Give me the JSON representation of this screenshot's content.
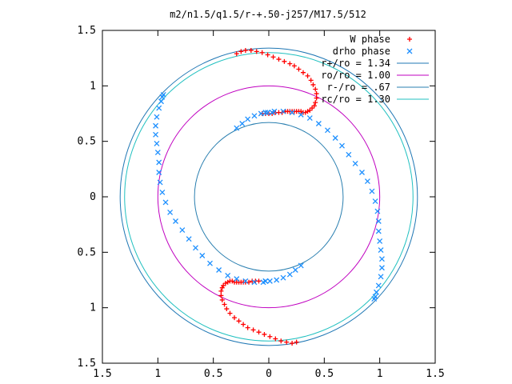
{
  "chart_data": {
    "type": "scatter",
    "title": "m2/n1.5/q1.5/r-+.50-j257/M17.5/512",
    "xlabel": "",
    "ylabel": "",
    "xlim": [
      -1.5,
      1.5
    ],
    "ylim": [
      -1.5,
      1.5
    ],
    "x_ticks": [
      -1.5,
      -1,
      -0.5,
      0,
      0.5,
      1,
      1.5
    ],
    "y_ticks": [
      -1.5,
      -1,
      -0.5,
      0,
      0.5,
      1,
      1.5
    ],
    "x_tick_labels": [
      "1.5",
      "1",
      "0.5",
      "0",
      "0.5",
      "1",
      "1.5"
    ],
    "y_tick_labels": [
      "1.5",
      "1",
      "0.5",
      "0",
      "0.5",
      "1",
      "1.5"
    ],
    "grid": false,
    "legend_position": "top-right",
    "series": [
      {
        "name": "W phase",
        "marker": "plus",
        "color": "#ff0000",
        "x": [
          -0.29,
          -0.25,
          -0.21,
          -0.16,
          -0.11,
          -0.06,
          -0.01,
          0.04,
          0.09,
          0.14,
          0.19,
          0.23,
          0.27,
          0.31,
          0.35,
          0.38,
          0.4,
          0.42,
          0.43,
          0.43,
          0.42,
          0.41,
          0.39,
          0.37,
          0.35,
          0.33,
          0.31,
          0.29,
          0.27,
          0.25,
          0.23,
          0.21,
          0.19,
          0.17,
          0.15,
          0.12,
          0.09,
          0.06,
          0.03,
          0.0,
          -0.03,
          -0.06,
          -0.09,
          -0.12,
          -0.15,
          -0.18,
          -0.21,
          -0.23,
          -0.25,
          -0.27,
          -0.29,
          -0.31,
          -0.33,
          -0.35,
          -0.37,
          -0.39,
          -0.41,
          -0.42,
          -0.43,
          -0.43,
          -0.42,
          -0.4,
          -0.38,
          -0.35,
          -0.31,
          -0.27,
          -0.23,
          -0.19,
          -0.14,
          -0.09,
          -0.04,
          0.01,
          0.06,
          0.11,
          0.16,
          0.21,
          0.25
        ],
        "y": [
          1.29,
          1.31,
          1.32,
          1.32,
          1.31,
          1.3,
          1.28,
          1.26,
          1.24,
          1.22,
          1.2,
          1.18,
          1.15,
          1.12,
          1.09,
          1.05,
          1.01,
          0.97,
          0.93,
          0.89,
          0.85,
          0.82,
          0.8,
          0.78,
          0.77,
          0.76,
          0.76,
          0.77,
          0.77,
          0.77,
          0.77,
          0.77,
          0.77,
          0.77,
          0.77,
          0.76,
          0.76,
          0.76,
          0.75,
          0.75,
          0.75,
          0.75,
          -0.76,
          -0.76,
          -0.76,
          -0.77,
          -0.77,
          -0.77,
          -0.77,
          -0.77,
          -0.77,
          -0.77,
          -0.76,
          -0.76,
          -0.77,
          -0.78,
          -0.8,
          -0.82,
          -0.85,
          -0.89,
          -0.93,
          -0.97,
          -1.01,
          -1.05,
          -1.09,
          -1.12,
          -1.15,
          -1.18,
          -1.2,
          -1.22,
          -1.24,
          -1.26,
          -1.28,
          -1.3,
          -1.31,
          -1.32,
          -1.31
        ]
      },
      {
        "name": "drho phase",
        "marker": "cross",
        "color": "#1e90ff",
        "x": [
          -0.03,
          0.05,
          0.13,
          0.21,
          0.29,
          0.37,
          0.45,
          0.53,
          0.6,
          0.66,
          0.72,
          0.78,
          0.84,
          0.89,
          0.93,
          0.96,
          0.98,
          0.99,
          0.99,
          1.0,
          1.01,
          1.02,
          1.02,
          1.01,
          0.99,
          0.97,
          0.96,
          0.95,
          -0.29,
          -0.24,
          -0.19,
          -0.13,
          -0.07,
          -0.01,
          0.03,
          -0.03,
          -0.05,
          -0.13,
          -0.21,
          -0.29,
          -0.37,
          -0.45,
          -0.53,
          -0.6,
          -0.66,
          -0.72,
          -0.78,
          -0.84,
          -0.89,
          -0.93,
          -0.96,
          -0.98,
          -0.99,
          -0.99,
          -1.0,
          -1.01,
          -1.02,
          -1.02,
          -1.01,
          -0.99,
          -0.97,
          -0.96,
          -0.95,
          0.29,
          0.24,
          0.19,
          0.13,
          0.07,
          0.01,
          -0.03
        ],
        "y": [
          0.76,
          0.77,
          0.77,
          0.76,
          0.74,
          0.71,
          0.66,
          0.6,
          0.53,
          0.46,
          0.38,
          0.3,
          0.22,
          0.14,
          0.05,
          -0.04,
          -0.13,
          -0.22,
          -0.31,
          -0.4,
          -0.48,
          -0.56,
          -0.64,
          -0.72,
          -0.8,
          -0.86,
          -0.9,
          -0.92,
          0.62,
          0.66,
          0.7,
          0.73,
          0.75,
          0.76,
          0.76,
          -0.76,
          -0.77,
          -0.77,
          -0.76,
          -0.74,
          -0.71,
          -0.66,
          -0.6,
          -0.53,
          -0.46,
          -0.38,
          -0.3,
          -0.22,
          -0.14,
          -0.05,
          0.04,
          0.13,
          0.22,
          0.31,
          0.4,
          0.48,
          0.56,
          0.64,
          0.72,
          0.8,
          0.86,
          0.9,
          0.92,
          -0.62,
          -0.66,
          -0.7,
          -0.73,
          -0.75,
          -0.76,
          -0.76
        ]
      },
      {
        "name": "r+/ro = 1.34",
        "type": "circle",
        "radius": 1.34,
        "color": "#1f77b4"
      },
      {
        "name": "ro/ro = 1.00",
        "type": "circle",
        "radius": 1.0,
        "color": "#c000c0"
      },
      {
        "name": "r-/ro = .67",
        "type": "circle",
        "radius": 0.67,
        "color": "#2a7fb0"
      },
      {
        "name": "rc/ro = 1.30",
        "type": "circle",
        "radius": 1.3,
        "color": "#20c0c0"
      }
    ]
  }
}
